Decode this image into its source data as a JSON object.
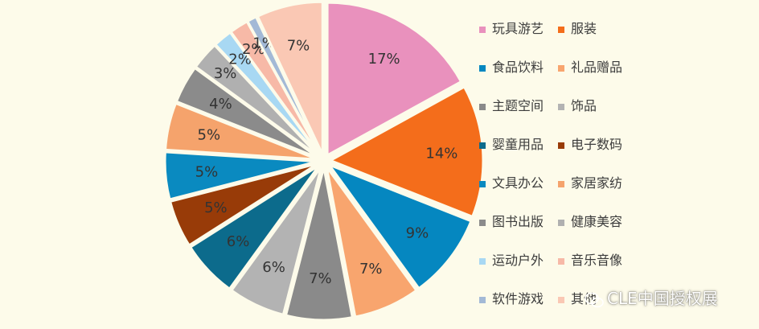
{
  "chart_data": {
    "type": "pie",
    "title": "",
    "slices": [
      {
        "label": "玩具游艺",
        "value": 17,
        "display": "17%",
        "color": "#e991bd"
      },
      {
        "label": "服装",
        "value": 14,
        "display": "14%",
        "color": "#f46d1b"
      },
      {
        "label": "食品饮料",
        "value": 9,
        "display": "9%",
        "color": "#0587c0"
      },
      {
        "label": "礼品赠品",
        "value": 7,
        "display": "7%",
        "color": "#f8a56e"
      },
      {
        "label": "主题空间",
        "value": 7,
        "display": "7%",
        "color": "#8a8a8a"
      },
      {
        "label": "饰品",
        "value": 6,
        "display": "6%",
        "color": "#b3b3b3"
      },
      {
        "label": "婴童用品",
        "value": 6,
        "display": "6%",
        "color": "#0c6b8c"
      },
      {
        "label": "电子数码",
        "value": 5,
        "display": "5%",
        "color": "#983b08"
      },
      {
        "label": "文具办公",
        "value": 5,
        "display": "5%",
        "color": "#0a8ac0"
      },
      {
        "label": "家居家纺",
        "value": 5,
        "display": "5%",
        "color": "#f5a36c"
      },
      {
        "label": "图书出版",
        "value": 4,
        "display": "4%",
        "color": "#8b8b8b"
      },
      {
        "label": "健康美容",
        "value": 3,
        "display": "3%",
        "color": "#b0b0b0"
      },
      {
        "label": "运动户外",
        "value": 2,
        "display": "2%",
        "color": "#a8d8f3"
      },
      {
        "label": "音乐音像",
        "value": 2,
        "display": "2%",
        "color": "#f7b9a7"
      },
      {
        "label": "软件游戏",
        "value": 1,
        "display": "1%",
        "color": "#a3b9d6"
      },
      {
        "label": "其他",
        "value": 7,
        "display": "7%",
        "color": "#fac8b4"
      }
    ],
    "legend_position": "right",
    "legend_columns": 2
  },
  "watermark": {
    "text": "CLE中国授权展",
    "icon": "wechat-icon"
  }
}
